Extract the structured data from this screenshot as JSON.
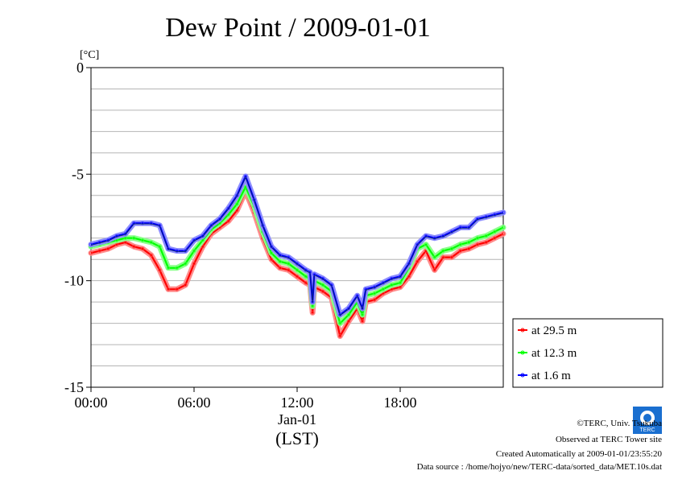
{
  "chart_data": {
    "type": "line",
    "title": "Dew Point / 2009-01-01",
    "y_unit": "[°C]",
    "ylim": [
      -15,
      0
    ],
    "xlim_hours": [
      0,
      24
    ],
    "y_ticks": [
      {
        "value": 0,
        "label": "0"
      },
      {
        "value": -5,
        "label": "-5"
      },
      {
        "value": -10,
        "label": "-10"
      },
      {
        "value": -15,
        "label": "-15"
      }
    ],
    "x_ticks": [
      {
        "value": 0,
        "label": "00:00"
      },
      {
        "value": 6,
        "label": "06:00"
      },
      {
        "value": 12,
        "label": "12:00"
      },
      {
        "value": 18,
        "label": "18:00"
      }
    ],
    "x_date_label": "Jan-01",
    "x_axis_label": "(LST)",
    "grid": "horizontal",
    "legend_position": "right",
    "x": [
      0,
      0.5,
      1,
      1.5,
      2,
      2.5,
      3,
      3.5,
      4,
      4.5,
      5,
      5.5,
      6,
      6.5,
      7,
      7.5,
      8,
      8.5,
      9,
      9.5,
      10,
      10.5,
      11,
      11.5,
      12,
      12.5,
      12.75,
      12.9,
      13,
      13.5,
      14,
      14.5,
      15,
      15.5,
      15.8,
      16,
      16.5,
      17,
      17.5,
      18,
      18.5,
      19,
      19.5,
      20,
      20.5,
      21,
      21.5,
      22,
      22.5,
      23,
      23.5,
      24
    ],
    "series": [
      {
        "name": "at 29.5 m",
        "color": "#ff0000",
        "values": [
          -8.7,
          -8.6,
          -8.5,
          -8.3,
          -8.2,
          -8.4,
          -8.5,
          -8.8,
          -9.5,
          -10.4,
          -10.4,
          -10.2,
          -9.2,
          -8.4,
          -7.8,
          -7.5,
          -7.2,
          -6.7,
          -5.8,
          -6.8,
          -8.0,
          -9.0,
          -9.4,
          -9.5,
          -9.8,
          -10.1,
          -10.2,
          -11.5,
          -10.3,
          -10.5,
          -10.8,
          -12.6,
          -11.9,
          -11.3,
          -11.9,
          -11.0,
          -10.9,
          -10.6,
          -10.4,
          -10.3,
          -9.8,
          -9.1,
          -8.6,
          -9.5,
          -8.9,
          -8.9,
          -8.6,
          -8.5,
          -8.3,
          -8.2,
          -8.0,
          -7.8
        ]
      },
      {
        "name": "at 12.3 m",
        "color": "#00ff00",
        "values": [
          -8.4,
          -8.3,
          -8.2,
          -8.1,
          -8.0,
          -8.0,
          -8.1,
          -8.2,
          -8.4,
          -9.4,
          -9.4,
          -9.2,
          -8.6,
          -8.1,
          -7.6,
          -7.3,
          -6.9,
          -6.4,
          -5.6,
          -6.5,
          -7.7,
          -8.7,
          -9.1,
          -9.2,
          -9.5,
          -9.8,
          -9.9,
          -11.2,
          -10.0,
          -10.2,
          -10.5,
          -12.0,
          -11.6,
          -11.0,
          -11.6,
          -10.7,
          -10.6,
          -10.4,
          -10.2,
          -10.1,
          -9.4,
          -8.5,
          -8.3,
          -8.9,
          -8.6,
          -8.5,
          -8.3,
          -8.2,
          -8.0,
          -7.9,
          -7.7,
          -7.5
        ]
      },
      {
        "name": "at 1.6 m",
        "color": "#0000ff",
        "values": [
          -8.3,
          -8.2,
          -8.1,
          -7.9,
          -7.8,
          -7.3,
          -7.3,
          -7.3,
          -7.4,
          -8.5,
          -8.6,
          -8.6,
          -8.1,
          -7.9,
          -7.4,
          -7.1,
          -6.6,
          -6.0,
          -5.1,
          -6.2,
          -7.4,
          -8.4,
          -8.8,
          -8.9,
          -9.2,
          -9.5,
          -9.6,
          -11.0,
          -9.7,
          -9.9,
          -10.2,
          -11.6,
          -11.3,
          -10.7,
          -11.3,
          -10.4,
          -10.3,
          -10.1,
          -9.9,
          -9.8,
          -9.2,
          -8.3,
          -7.9,
          -8.0,
          -7.9,
          -7.7,
          -7.5,
          -7.5,
          -7.1,
          -7.0,
          -6.9,
          -6.8
        ]
      }
    ]
  },
  "footer": {
    "copyright": "©TERC, Univ. Tsukuba",
    "observed": "Observed at TERC Tower site",
    "created": "Created Automatically at 2009-01-01/23:55:20",
    "source": "Data source : /home/hojyo/new/TERC-data/sorted_data/MET.10s.dat",
    "logo_text": "TERC"
  }
}
